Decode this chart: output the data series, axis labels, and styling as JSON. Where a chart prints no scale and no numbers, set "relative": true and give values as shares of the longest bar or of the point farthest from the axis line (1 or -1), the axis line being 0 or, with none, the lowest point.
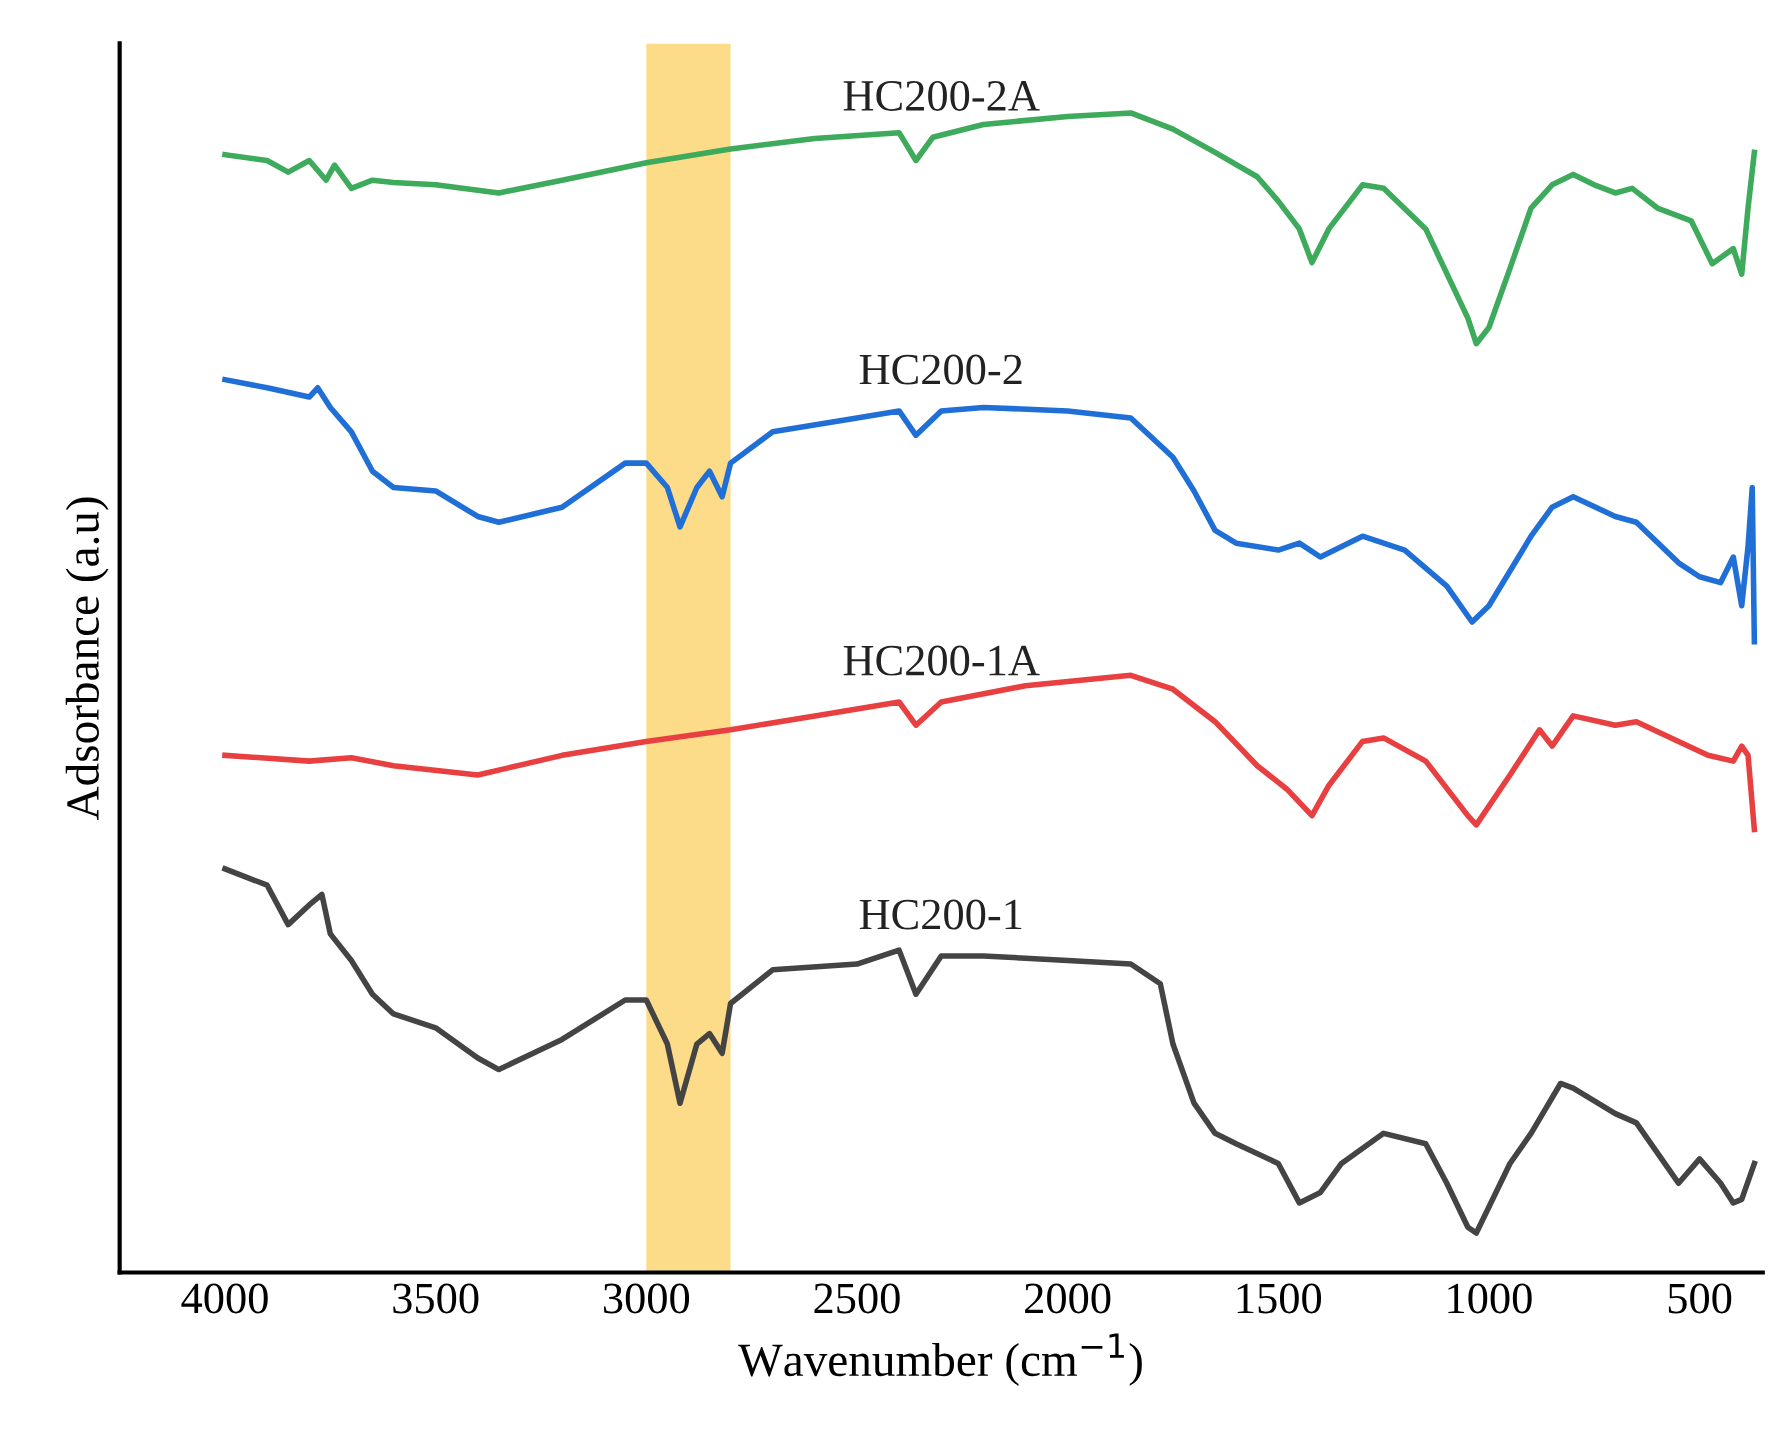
{
  "chart_data": {
    "type": "line",
    "relative": true,
    "xlabel": "Wavenumber (cm$^{−1}$)",
    "ylabel": "Adsorbance (a.u)",
    "xlim": [
      4250,
      350
    ],
    "xticks": [
      4000,
      3500,
      3000,
      2500,
      2000,
      1500,
      1000,
      500
    ],
    "grid": false,
    "marker": "none",
    "line_style": "solid",
    "tick_labels": "x",
    "bands": [
      {
        "axis": "x",
        "from": 3000,
        "to": 2800,
        "color": "#fdd87c"
      }
    ],
    "series": [
      {
        "name": "HC200-2A",
        "color": "#3daa5c",
        "x": [
          4000,
          3900,
          3850,
          3800,
          3760,
          3740,
          3700,
          3650,
          3600,
          3500,
          3350,
          3200,
          3000,
          2800,
          2600,
          2400,
          2360,
          2320,
          2200,
          2000,
          1850,
          1750,
          1650,
          1550,
          1500,
          1450,
          1420,
          1380,
          1300,
          1250,
          1150,
          1050,
          1030,
          1000,
          950,
          900,
          850,
          800,
          750,
          700,
          660,
          600,
          520,
          470,
          420,
          400,
          385,
          370
        ],
        "values": [
          0.964,
          0.959,
          0.949,
          0.959,
          0.942,
          0.955,
          0.935,
          0.942,
          0.94,
          0.938,
          0.931,
          0.942,
          0.957,
          0.969,
          0.978,
          0.983,
          0.959,
          0.979,
          0.99,
          0.997,
          1.0,
          0.986,
          0.966,
          0.945,
          0.924,
          0.9,
          0.871,
          0.9,
          0.938,
          0.935,
          0.9,
          0.823,
          0.801,
          0.815,
          0.866,
          0.918,
          0.938,
          0.947,
          0.938,
          0.931,
          0.935,
          0.918,
          0.907,
          0.87,
          0.883,
          0.861,
          0.918,
          0.966
        ]
      },
      {
        "name": "HC200-2",
        "color": "#1f6fd6",
        "x": [
          4000,
          3900,
          3800,
          3780,
          3750,
          3700,
          3650,
          3600,
          3500,
          3400,
          3350,
          3200,
          3050,
          3000,
          2950,
          2920,
          2880,
          2850,
          2820,
          2800,
          2700,
          2500,
          2400,
          2360,
          2300,
          2200,
          2000,
          1850,
          1750,
          1700,
          1650,
          1600,
          1500,
          1450,
          1400,
          1300,
          1200,
          1100,
          1040,
          1000,
          900,
          850,
          800,
          700,
          650,
          550,
          500,
          450,
          420,
          400,
          385,
          375,
          370
        ],
        "values": [
          0.77,
          0.763,
          0.755,
          0.763,
          0.746,
          0.725,
          0.691,
          0.677,
          0.674,
          0.652,
          0.647,
          0.66,
          0.698,
          0.698,
          0.677,
          0.643,
          0.677,
          0.691,
          0.669,
          0.698,
          0.725,
          0.737,
          0.743,
          0.722,
          0.743,
          0.746,
          0.743,
          0.737,
          0.703,
          0.674,
          0.64,
          0.629,
          0.623,
          0.629,
          0.617,
          0.635,
          0.623,
          0.592,
          0.561,
          0.575,
          0.635,
          0.66,
          0.669,
          0.652,
          0.647,
          0.612,
          0.6,
          0.595,
          0.617,
          0.575,
          0.626,
          0.677,
          0.544
        ]
      },
      {
        "name": "HC200-1A",
        "color": "#e84040",
        "x": [
          4000,
          3800,
          3700,
          3600,
          3400,
          3200,
          3000,
          2800,
          2600,
          2400,
          2360,
          2300,
          2100,
          1850,
          1750,
          1650,
          1550,
          1480,
          1420,
          1380,
          1300,
          1250,
          1150,
          1050,
          1030,
          950,
          880,
          850,
          800,
          700,
          650,
          550,
          480,
          420,
          400,
          385,
          370
        ],
        "values": [
          0.446,
          0.441,
          0.444,
          0.437,
          0.429,
          0.446,
          0.458,
          0.468,
          0.48,
          0.492,
          0.472,
          0.492,
          0.506,
          0.515,
          0.503,
          0.475,
          0.437,
          0.417,
          0.394,
          0.42,
          0.458,
          0.461,
          0.441,
          0.394,
          0.386,
          0.429,
          0.468,
          0.454,
          0.48,
          0.472,
          0.475,
          0.458,
          0.446,
          0.441,
          0.454,
          0.446,
          0.382
        ]
      },
      {
        "name": "HC200-1",
        "color": "#444444",
        "x": [
          4000,
          3900,
          3850,
          3800,
          3770,
          3750,
          3700,
          3650,
          3600,
          3500,
          3400,
          3350,
          3200,
          3050,
          3000,
          2950,
          2920,
          2880,
          2850,
          2820,
          2800,
          2700,
          2500,
          2400,
          2360,
          2300,
          2200,
          2000,
          1850,
          1780,
          1750,
          1700,
          1650,
          1600,
          1500,
          1450,
          1400,
          1350,
          1250,
          1150,
          1100,
          1050,
          1030,
          950,
          900,
          830,
          800,
          700,
          650,
          550,
          500,
          450,
          420,
          400,
          370
        ],
        "values": [
          0.348,
          0.334,
          0.3,
          0.317,
          0.326,
          0.292,
          0.269,
          0.24,
          0.223,
          0.211,
          0.185,
          0.175,
          0.201,
          0.235,
          0.235,
          0.197,
          0.146,
          0.197,
          0.206,
          0.189,
          0.232,
          0.261,
          0.266,
          0.278,
          0.24,
          0.273,
          0.273,
          0.269,
          0.266,
          0.249,
          0.197,
          0.146,
          0.12,
          0.111,
          0.094,
          0.06,
          0.069,
          0.094,
          0.12,
          0.111,
          0.077,
          0.039,
          0.034,
          0.094,
          0.12,
          0.163,
          0.159,
          0.137,
          0.129,
          0.077,
          0.098,
          0.077,
          0.06,
          0.063,
          0.094
        ]
      }
    ]
  }
}
